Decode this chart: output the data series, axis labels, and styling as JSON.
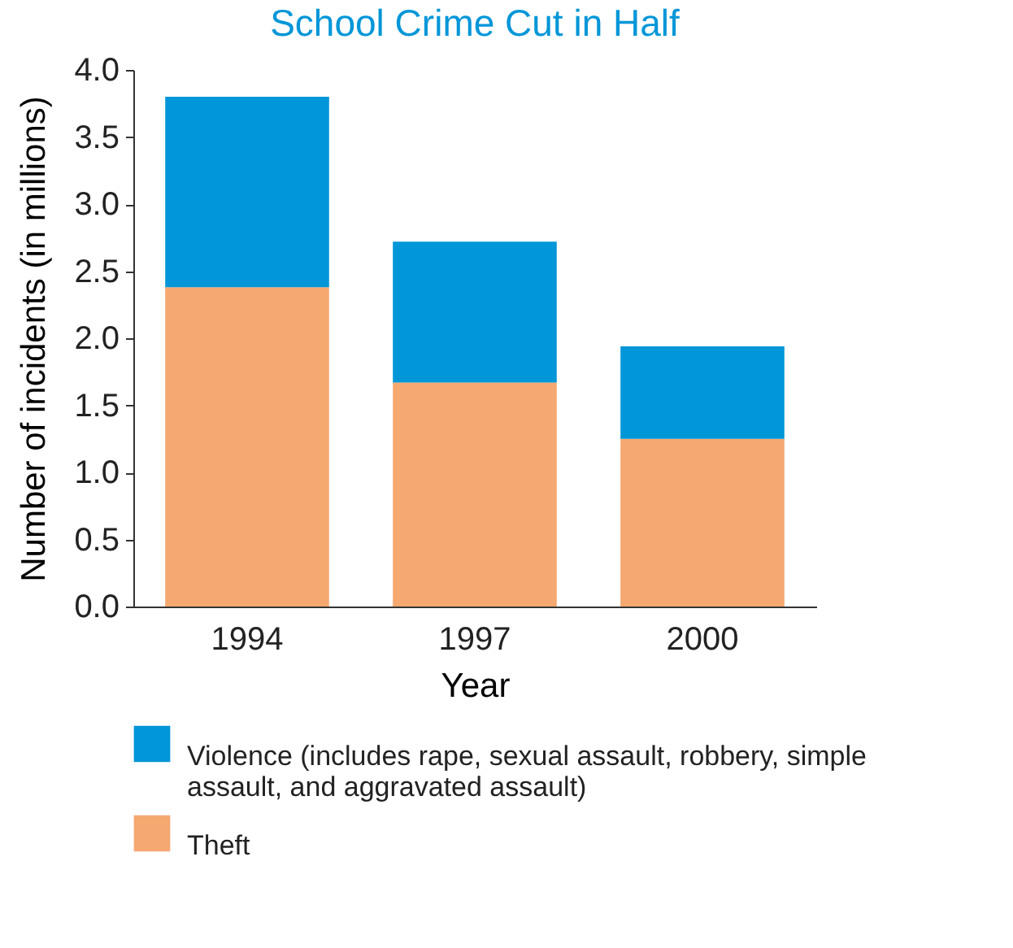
{
  "chart_data": {
    "type": "bar",
    "title": "School Crime Cut in Half",
    "xlabel": "Year",
    "ylabel": "Number of incidents (in millions)",
    "categories": [
      "1994",
      "1997",
      "2000"
    ],
    "stacked": true,
    "series": [
      {
        "name": "Theft",
        "color": "#f5a870",
        "values": [
          2.38,
          1.67,
          1.25
        ]
      },
      {
        "name": "Violence (includes rape, sexual assault, robbery, simple assault, and aggravated assault)",
        "color": "#0096d8",
        "values": [
          1.42,
          1.05,
          0.69
        ]
      }
    ],
    "ylim": [
      0,
      4
    ],
    "yticks": [
      {
        "value": 0,
        "label": "0.0"
      },
      {
        "value": 0.5,
        "label": "0.5"
      },
      {
        "value": 1,
        "label": "1.0"
      },
      {
        "value": 1.5,
        "label": "1.5"
      },
      {
        "value": 2,
        "label": "2.0"
      },
      {
        "value": 2.5,
        "label": "2.5"
      },
      {
        "value": 3,
        "label": "3.0"
      },
      {
        "value": 3.5,
        "label": "3.5"
      },
      {
        "value": 4,
        "label": "4.0"
      }
    ],
    "grid": false,
    "legend": "bottom"
  }
}
